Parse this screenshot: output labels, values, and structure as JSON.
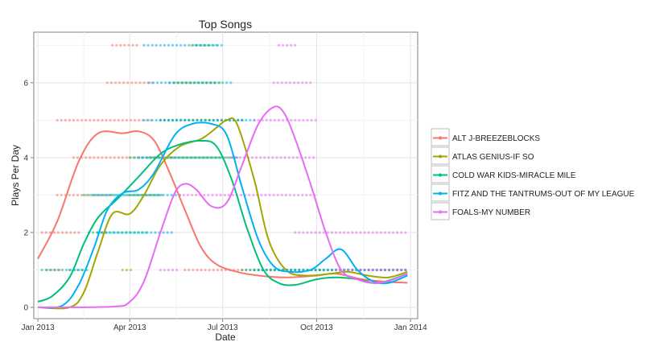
{
  "chart_data": {
    "type": "scatter",
    "title": "Top Songs",
    "xlabel": "Date",
    "ylabel": "Plays Per Day",
    "x_range": [
      "2012-12-28",
      "2014-01-08"
    ],
    "ylim": [
      -0.3,
      7.35
    ],
    "x_ticks": [
      {
        "date": "2013-01-01",
        "label": "Jan 2013"
      },
      {
        "date": "2013-04-01",
        "label": "Apr 2013"
      },
      {
        "date": "2013-07-01",
        "label": "Jul 2013"
      },
      {
        "date": "2013-10-01",
        "label": "Oct 2013"
      },
      {
        "date": "2014-01-01",
        "label": "Jan 2014"
      }
    ],
    "y_ticks": [
      0,
      2,
      4,
      6
    ],
    "grid": true,
    "legend_position": "right",
    "series": [
      {
        "name": "ALT J-BREEZEBLOCKS",
        "color": "#F8766D",
        "smooth": [
          [
            "2013-01-01",
            1.3
          ],
          [
            "2013-01-20",
            2.3
          ],
          [
            "2013-02-10",
            3.9
          ],
          [
            "2013-03-01",
            4.65
          ],
          [
            "2013-03-25",
            4.65
          ],
          [
            "2013-04-10",
            4.7
          ],
          [
            "2013-04-25",
            4.45
          ],
          [
            "2013-05-10",
            3.6
          ],
          [
            "2013-05-25",
            2.6
          ],
          [
            "2013-06-10",
            1.6
          ],
          [
            "2013-06-25",
            1.15
          ],
          [
            "2013-07-15",
            0.95
          ],
          [
            "2013-08-05",
            0.85
          ],
          [
            "2013-09-01",
            0.8
          ],
          [
            "2013-10-01",
            0.85
          ],
          [
            "2013-10-20",
            0.9
          ],
          [
            "2013-11-15",
            0.75
          ],
          [
            "2013-12-10",
            0.68
          ],
          [
            "2013-12-29",
            0.66
          ]
        ],
        "points": [
          {
            "y": 1,
            "from": "2013-01-10",
            "to": "2013-01-25"
          },
          {
            "y": 2,
            "from": "2013-01-05",
            "to": "2013-02-10"
          },
          {
            "y": 3,
            "from": "2013-01-20",
            "to": "2013-03-15"
          },
          {
            "y": 4,
            "from": "2013-02-05",
            "to": "2013-05-15"
          },
          {
            "y": 5,
            "from": "2013-01-20",
            "to": "2013-04-25"
          },
          {
            "y": 6,
            "from": "2013-03-10",
            "to": "2013-04-25"
          },
          {
            "y": 7,
            "from": "2013-03-15",
            "to": "2013-04-10"
          },
          {
            "y": 1,
            "from": "2013-05-25",
            "to": "2013-12-28"
          }
        ]
      },
      {
        "name": "ATLAS GENIUS-IF SO",
        "color": "#A3A500",
        "smooth": [
          [
            "2013-01-01",
            0.0
          ],
          [
            "2013-02-01",
            0.0
          ],
          [
            "2013-02-15",
            0.4
          ],
          [
            "2013-03-01",
            1.5
          ],
          [
            "2013-03-15",
            2.5
          ],
          [
            "2013-04-01",
            2.5
          ],
          [
            "2013-04-15",
            3.0
          ],
          [
            "2013-05-01",
            3.8
          ],
          [
            "2013-05-20",
            4.3
          ],
          [
            "2013-06-10",
            4.5
          ],
          [
            "2013-06-25",
            4.8
          ],
          [
            "2013-07-05",
            5.0
          ],
          [
            "2013-07-15",
            4.9
          ],
          [
            "2013-08-01",
            3.4
          ],
          [
            "2013-08-15",
            1.8
          ],
          [
            "2013-09-01",
            1.0
          ],
          [
            "2013-09-20",
            0.85
          ],
          [
            "2013-10-15",
            0.9
          ],
          [
            "2013-11-01",
            0.95
          ],
          [
            "2013-11-20",
            0.85
          ],
          [
            "2013-12-10",
            0.8
          ],
          [
            "2013-12-29",
            0.95
          ]
        ],
        "points": [
          {
            "y": 1,
            "from": "2013-03-25",
            "to": "2013-04-05"
          },
          {
            "y": 2,
            "from": "2013-03-01",
            "to": "2013-03-10"
          },
          {
            "y": 3,
            "from": "2013-04-01",
            "to": "2013-05-01"
          },
          {
            "y": 4,
            "from": "2013-04-20",
            "to": "2013-07-15"
          },
          {
            "y": 5,
            "from": "2013-05-01",
            "to": "2013-07-20"
          },
          {
            "y": 6,
            "from": "2013-05-15",
            "to": "2013-07-01"
          },
          {
            "y": 7,
            "from": "2013-06-01",
            "to": "2013-06-20"
          },
          {
            "y": 1,
            "from": "2013-08-01",
            "to": "2013-12-28"
          }
        ]
      },
      {
        "name": "COLD WAR KIDS-MIRACLE MILE",
        "color": "#00BF7D",
        "smooth": [
          [
            "2013-01-01",
            0.15
          ],
          [
            "2013-01-15",
            0.3
          ],
          [
            "2013-02-01",
            0.8
          ],
          [
            "2013-02-15",
            1.7
          ],
          [
            "2013-03-01",
            2.4
          ],
          [
            "2013-03-20",
            2.9
          ],
          [
            "2013-04-10",
            3.5
          ],
          [
            "2013-05-01",
            4.1
          ],
          [
            "2013-05-20",
            4.35
          ],
          [
            "2013-06-10",
            4.45
          ],
          [
            "2013-06-25",
            4.3
          ],
          [
            "2013-07-10",
            3.4
          ],
          [
            "2013-07-25",
            2.1
          ],
          [
            "2013-08-10",
            1.0
          ],
          [
            "2013-08-25",
            0.65
          ],
          [
            "2013-09-10",
            0.6
          ],
          [
            "2013-10-01",
            0.75
          ],
          [
            "2013-10-20",
            0.8
          ],
          [
            "2013-11-10",
            0.75
          ],
          [
            "2013-12-01",
            0.65
          ],
          [
            "2013-12-29",
            0.9
          ]
        ],
        "points": [
          {
            "y": 1,
            "from": "2013-01-05",
            "to": "2013-02-20"
          },
          {
            "y": 2,
            "from": "2013-02-20",
            "to": "2013-04-20"
          },
          {
            "y": 3,
            "from": "2013-02-15",
            "to": "2013-05-05"
          },
          {
            "y": 4,
            "from": "2013-04-01",
            "to": "2013-07-01"
          },
          {
            "y": 5,
            "from": "2013-05-01",
            "to": "2013-07-20"
          },
          {
            "y": 6,
            "from": "2013-05-10",
            "to": "2013-06-25"
          },
          {
            "y": 7,
            "from": "2013-06-05",
            "to": "2013-06-25"
          },
          {
            "y": 1,
            "from": "2013-07-20",
            "to": "2013-12-28"
          }
        ]
      },
      {
        "name": "FITZ AND THE TANTRUMS-OUT OF MY LEAGUE",
        "color": "#00B0F6",
        "smooth": [
          [
            "2013-01-01",
            0.0
          ],
          [
            "2013-01-25",
            0.05
          ],
          [
            "2013-02-10",
            0.6
          ],
          [
            "2013-02-25",
            1.6
          ],
          [
            "2013-03-10",
            2.6
          ],
          [
            "2013-03-25",
            3.05
          ],
          [
            "2013-04-10",
            3.15
          ],
          [
            "2013-04-25",
            3.6
          ],
          [
            "2013-05-15",
            4.6
          ],
          [
            "2013-06-01",
            4.9
          ],
          [
            "2013-06-20",
            4.9
          ],
          [
            "2013-07-05",
            4.6
          ],
          [
            "2013-07-20",
            3.2
          ],
          [
            "2013-08-05",
            1.8
          ],
          [
            "2013-08-20",
            1.1
          ],
          [
            "2013-09-05",
            0.95
          ],
          [
            "2013-09-25",
            1.0
          ],
          [
            "2013-10-10",
            1.3
          ],
          [
            "2013-10-25",
            1.55
          ],
          [
            "2013-11-10",
            1.0
          ],
          [
            "2013-11-25",
            0.7
          ],
          [
            "2013-12-10",
            0.65
          ],
          [
            "2013-12-29",
            0.85
          ]
        ],
        "points": [
          {
            "y": 1,
            "from": "2013-02-01",
            "to": "2013-02-15"
          },
          {
            "y": 2,
            "from": "2013-03-01",
            "to": "2013-05-15"
          },
          {
            "y": 3,
            "from": "2013-02-25",
            "to": "2013-05-20"
          },
          {
            "y": 4,
            "from": "2013-04-10",
            "to": "2013-07-15"
          },
          {
            "y": 5,
            "from": "2013-04-15",
            "to": "2013-08-01"
          },
          {
            "y": 6,
            "from": "2013-04-20",
            "to": "2013-07-10"
          },
          {
            "y": 7,
            "from": "2013-04-15",
            "to": "2013-07-01"
          },
          {
            "y": 1,
            "from": "2013-08-01",
            "to": "2013-12-28"
          }
        ]
      },
      {
        "name": "FOALS-MY NUMBER",
        "color": "#E76BF3",
        "smooth": [
          [
            "2013-01-01",
            0.0
          ],
          [
            "2013-03-15",
            0.02
          ],
          [
            "2013-04-01",
            0.15
          ],
          [
            "2013-04-15",
            0.7
          ],
          [
            "2013-05-01",
            2.0
          ],
          [
            "2013-05-15",
            3.05
          ],
          [
            "2013-05-25",
            3.3
          ],
          [
            "2013-06-05",
            3.15
          ],
          [
            "2013-06-20",
            2.7
          ],
          [
            "2013-07-05",
            2.8
          ],
          [
            "2013-07-20",
            3.8
          ],
          [
            "2013-08-05",
            4.9
          ],
          [
            "2013-08-20",
            5.35
          ],
          [
            "2013-08-30",
            5.2
          ],
          [
            "2013-09-10",
            4.5
          ],
          [
            "2013-09-25",
            3.3
          ],
          [
            "2013-10-10",
            2.0
          ],
          [
            "2013-10-25",
            1.0
          ],
          [
            "2013-11-10",
            0.75
          ],
          [
            "2013-11-25",
            0.65
          ],
          [
            "2013-12-10",
            0.7
          ],
          [
            "2013-12-29",
            0.9
          ]
        ],
        "points": [
          {
            "y": 1,
            "from": "2013-05-01",
            "to": "2013-05-20"
          },
          {
            "y": 2,
            "from": "2013-09-10",
            "to": "2013-12-28"
          },
          {
            "y": 3,
            "from": "2013-05-20",
            "to": "2013-10-01"
          },
          {
            "y": 4,
            "from": "2013-07-10",
            "to": "2013-10-01"
          },
          {
            "y": 5,
            "from": "2013-08-01",
            "to": "2013-10-01"
          },
          {
            "y": 6,
            "from": "2013-08-20",
            "to": "2013-09-25"
          },
          {
            "y": 7,
            "from": "2013-08-25",
            "to": "2013-09-10"
          },
          {
            "y": 1,
            "from": "2013-10-20",
            "to": "2013-12-28"
          }
        ]
      }
    ]
  }
}
